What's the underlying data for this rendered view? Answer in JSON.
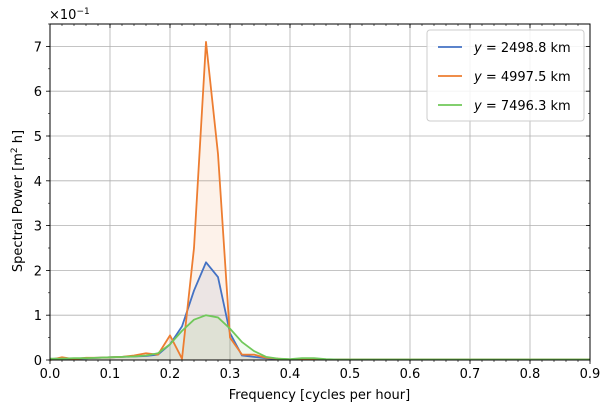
{
  "chart_data": {
    "type": "line",
    "xlabel": "Frequency [cycles per hour]",
    "ylabel_main": "Spectral Power [m",
    "ylabel_sup": "2",
    "ylabel_tail": " h]",
    "scale_base": "×10",
    "scale_exp": "−1",
    "xlim": [
      0.0,
      0.9
    ],
    "ylim": [
      0,
      7.5
    ],
    "y_scale_factor": 0.1,
    "grid": true,
    "legend_position": "top-right",
    "x_ticks": [
      0.0,
      0.1,
      0.2,
      0.3,
      0.4,
      0.5,
      0.6,
      0.7,
      0.8,
      0.9
    ],
    "x_tick_labels": [
      "0.0",
      "0.1",
      "0.2",
      "0.3",
      "0.4",
      "0.5",
      "0.6",
      "0.7",
      "0.8",
      "0.9"
    ],
    "y_ticks": [
      0,
      1,
      2,
      3,
      4,
      5,
      6,
      7
    ],
    "y_tick_labels": [
      "0",
      "1",
      "2",
      "3",
      "4",
      "5",
      "6",
      "7"
    ],
    "x": [
      0.0,
      0.02,
      0.04,
      0.06,
      0.08,
      0.1,
      0.12,
      0.14,
      0.16,
      0.18,
      0.2,
      0.22,
      0.24,
      0.26,
      0.28,
      0.3,
      0.32,
      0.34,
      0.36,
      0.38,
      0.4,
      0.42,
      0.44,
      0.46,
      0.48,
      0.5,
      0.52,
      0.54,
      0.56,
      0.58,
      0.6,
      0.62,
      0.64,
      0.66,
      0.68,
      0.7,
      0.72,
      0.74,
      0.76,
      0.78,
      0.8,
      0.82,
      0.84,
      0.86,
      0.88,
      0.9
    ],
    "series": [
      {
        "name_prefix": "y",
        "name_value": " = 2498.8 km",
        "color": "#4472c4",
        "fill": "#4472c4",
        "values": [
          0.02,
          0.04,
          0.03,
          0.04,
          0.05,
          0.06,
          0.07,
          0.08,
          0.09,
          0.12,
          0.35,
          0.75,
          1.55,
          2.18,
          1.85,
          0.6,
          0.1,
          0.07,
          0.04,
          0.02,
          0.01,
          0.01,
          0.01,
          0.01,
          0.01,
          0.01,
          0.01,
          0.01,
          0.01,
          0.01,
          0.01,
          0.01,
          0.01,
          0.01,
          0.01,
          0.01,
          0.01,
          0.01,
          0.01,
          0.01,
          0.01,
          0.01,
          0.01,
          0.01,
          0.01,
          0.01
        ]
      },
      {
        "name_prefix": "y",
        "name_value": " = 4997.5 km",
        "color": "#ed7d31",
        "fill": "#ed7d31",
        "values": [
          0.0,
          0.06,
          0.02,
          0.05,
          0.05,
          0.06,
          0.07,
          0.1,
          0.15,
          0.12,
          0.55,
          0.03,
          2.5,
          7.1,
          4.6,
          0.5,
          0.12,
          0.12,
          0.05,
          0.03,
          0.01,
          0.02,
          0.02,
          0.01,
          0.01,
          0.01,
          0.01,
          0.01,
          0.01,
          0.01,
          0.01,
          0.01,
          0.01,
          0.01,
          0.01,
          0.01,
          0.01,
          0.01,
          0.01,
          0.01,
          0.01,
          0.01,
          0.01,
          0.01,
          0.01,
          0.01
        ]
      },
      {
        "name_prefix": "y",
        "name_value": " = 7496.3 km",
        "color": "#70c85a",
        "fill": "#70c85a",
        "values": [
          0.03,
          0.03,
          0.04,
          0.04,
          0.05,
          0.06,
          0.07,
          0.08,
          0.1,
          0.15,
          0.35,
          0.65,
          0.9,
          1.0,
          0.95,
          0.7,
          0.4,
          0.2,
          0.07,
          0.03,
          0.02,
          0.04,
          0.04,
          0.02,
          0.01,
          0.01,
          0.01,
          0.01,
          0.01,
          0.01,
          0.01,
          0.01,
          0.01,
          0.01,
          0.01,
          0.01,
          0.01,
          0.01,
          0.01,
          0.01,
          0.01,
          0.01,
          0.01,
          0.01,
          0.01,
          0.01
        ]
      }
    ]
  }
}
